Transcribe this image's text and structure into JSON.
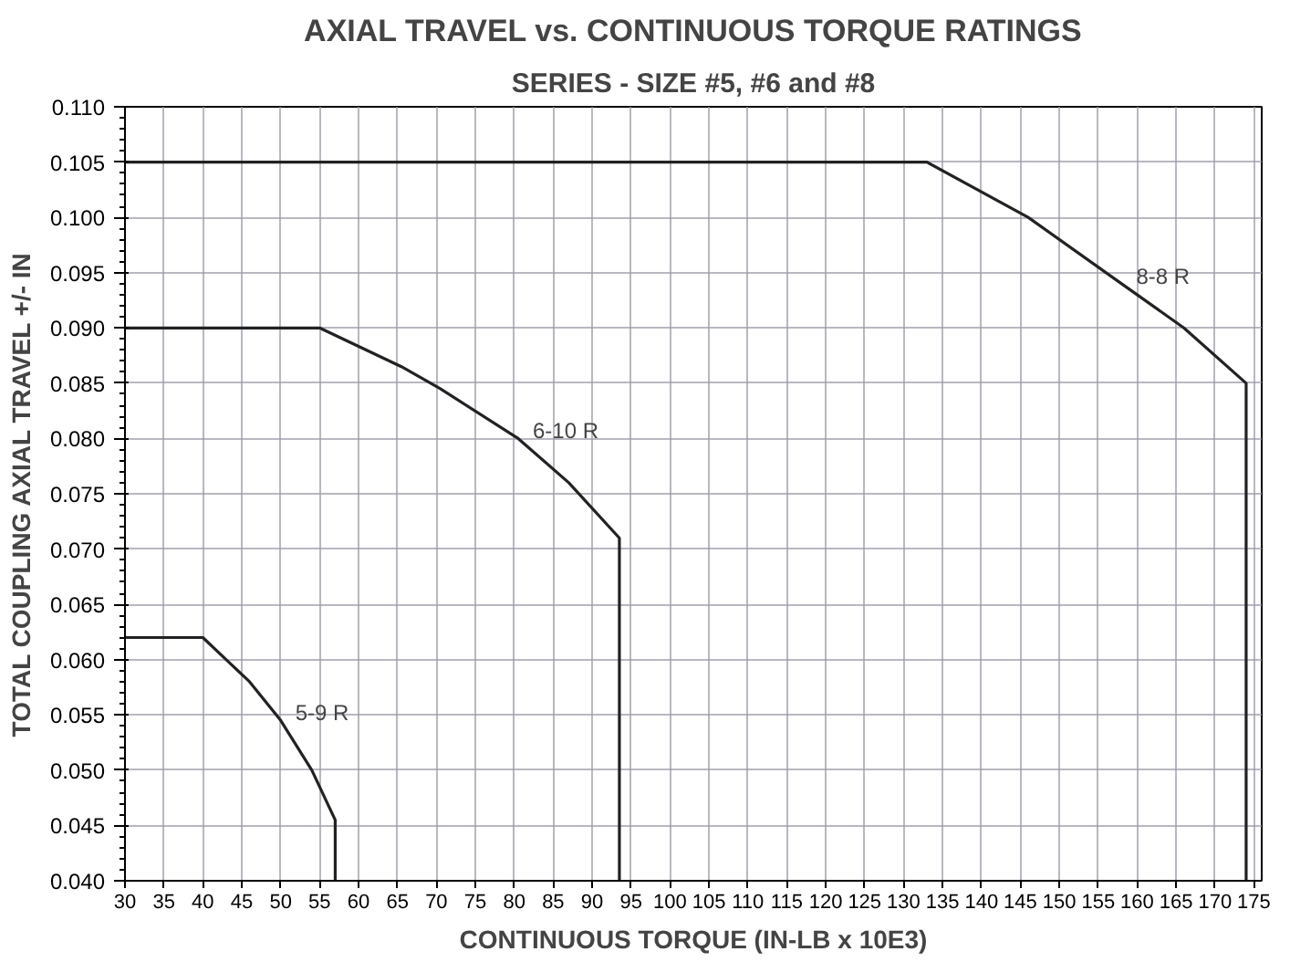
{
  "chart_data": {
    "type": "line",
    "title": "AXIAL TRAVEL vs. CONTINUOUS TORQUE RATINGS",
    "subtitle": "SERIES - SIZE #5, #6 and #8",
    "xlabel": "CONTINUOUS TORQUE (IN-LB x 10E3)",
    "ylabel": "TOTAL COUPLING AXIAL TRAVEL +/- IN",
    "series": [
      {
        "name": "5-9 R",
        "color": "#222222",
        "x": [
          30,
          40,
          46,
          50,
          54,
          57,
          57
        ],
        "values": [
          0.062,
          0.062,
          0.058,
          0.0545,
          0.05,
          0.0455,
          0.04
        ]
      },
      {
        "name": "6-10 R",
        "color": "#222222",
        "x": [
          30,
          55,
          65.5,
          70.5,
          80.5,
          87,
          93.5,
          93.5
        ],
        "values": [
          0.09,
          0.09,
          0.0865,
          0.0845,
          0.08,
          0.076,
          0.071,
          0.04
        ]
      },
      {
        "name": "8-8 R",
        "color": "#222222",
        "x": [
          30,
          133,
          146,
          158,
          166,
          174,
          174
        ],
        "values": [
          0.105,
          0.105,
          0.1,
          0.094,
          0.09,
          0.085,
          0.04
        ]
      }
    ],
    "xlim": [
      30,
      176
    ],
    "xticks": [
      30,
      35,
      40,
      45,
      50,
      55,
      60,
      65,
      70,
      75,
      80,
      85,
      90,
      95,
      100,
      105,
      110,
      115,
      120,
      125,
      130,
      135,
      140,
      145,
      150,
      155,
      160,
      165,
      170,
      175
    ],
    "ylim": [
      0.04,
      0.11
    ],
    "yticks": [
      {
        "value": 0.04,
        "label": "0.040"
      },
      {
        "value": 0.045,
        "label": "0.045"
      },
      {
        "value": 0.05,
        "label": "0.050"
      },
      {
        "value": 0.055,
        "label": "0.055"
      },
      {
        "value": 0.06,
        "label": "0.060"
      },
      {
        "value": 0.065,
        "label": "0.065"
      },
      {
        "value": 0.07,
        "label": "0.070"
      },
      {
        "value": 0.075,
        "label": "0.075"
      },
      {
        "value": 0.08,
        "label": "0.080"
      },
      {
        "value": 0.085,
        "label": "0.085"
      },
      {
        "value": 0.09,
        "label": "0.090"
      },
      {
        "value": 0.095,
        "label": "0.095"
      },
      {
        "value": 0.1,
        "label": "0.100"
      },
      {
        "value": 0.105,
        "label": "0.105"
      },
      {
        "value": 0.11,
        "label": "0.110"
      }
    ],
    "grid": true,
    "marker": "none",
    "line_style": "solid"
  }
}
